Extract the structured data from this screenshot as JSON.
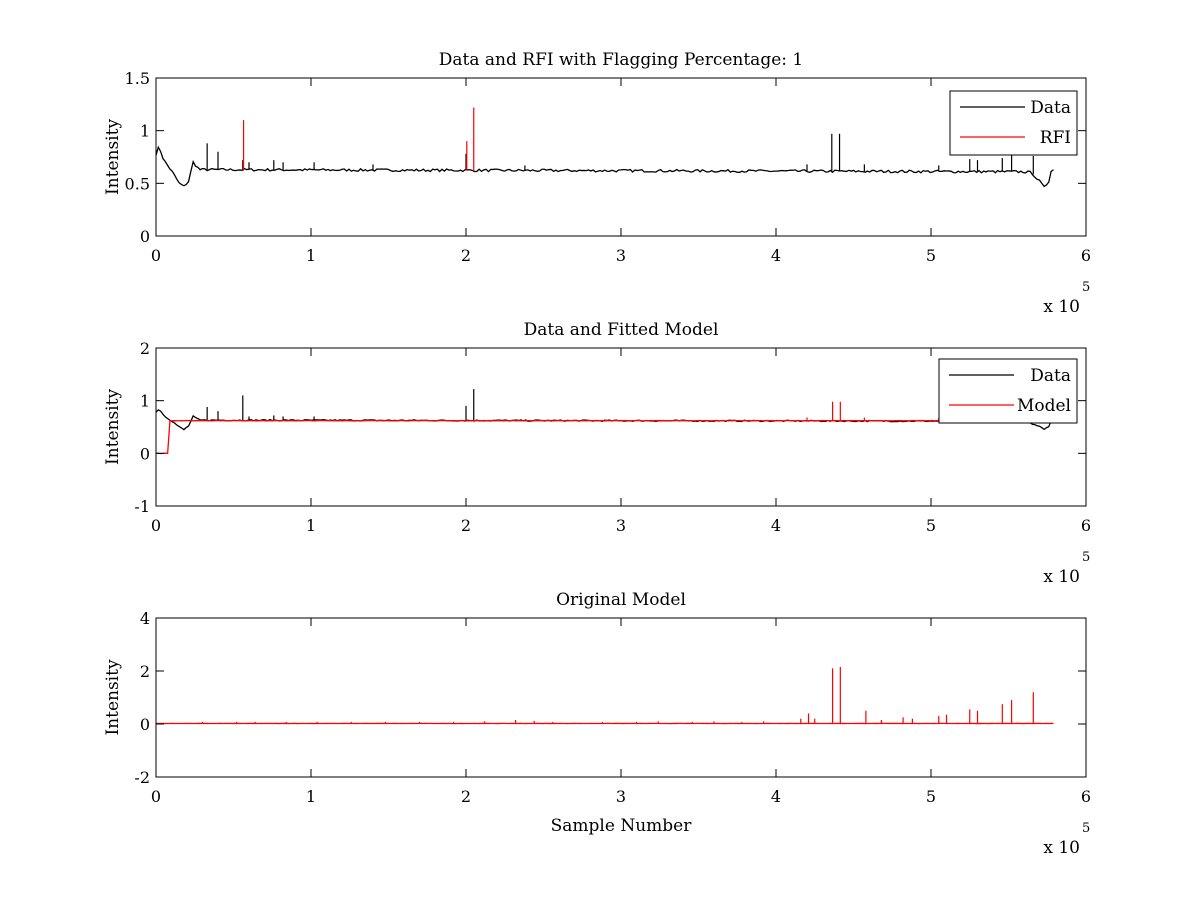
{
  "figure": {
    "background": "#ffffff",
    "colors": {
      "data": "#000000",
      "red": "#ff0000"
    }
  },
  "chart_data": [
    {
      "type": "line",
      "title": "Data and RFI with Flagging Percentage: 1",
      "xlabel": "",
      "ylabel": "Intensity",
      "xlim": [
        0,
        600000
      ],
      "ylim": [
        0,
        1.5
      ],
      "xticks": [
        0,
        1,
        2,
        3,
        4,
        5,
        6
      ],
      "xtick_scale": 100000,
      "yticks": [
        0,
        0.5,
        1,
        1.5
      ],
      "ytick_labels": [
        "0",
        "0.5",
        "1",
        "1.5"
      ],
      "exponent_label": {
        "base": "x 10",
        "power": "5"
      },
      "legend": {
        "position": "top-right",
        "entries": [
          "Data",
          "RFI"
        ]
      },
      "series": [
        {
          "name": "Data",
          "color": "#000000",
          "baseline": 0.62,
          "x_end": 580000,
          "shape": [
            [
              0,
              0.78
            ],
            [
              2000,
              0.85
            ],
            [
              5000,
              0.72
            ],
            [
              10000,
              0.62
            ],
            [
              15000,
              0.5
            ],
            [
              18000,
              0.47
            ],
            [
              21000,
              0.52
            ],
            [
              24000,
              0.7
            ],
            [
              28000,
              0.63
            ],
            [
              560000,
              0.61
            ],
            [
              565000,
              0.6
            ],
            [
              570000,
              0.52
            ],
            [
              573000,
              0.46
            ],
            [
              576000,
              0.52
            ],
            [
              578000,
              0.66
            ],
            [
              580000,
              0.6
            ]
          ],
          "spikes": [
            [
              33000,
              0.88
            ],
            [
              40000,
              0.8
            ],
            [
              56000,
              0.72
            ],
            [
              60000,
              0.7
            ],
            [
              76000,
              0.72
            ],
            [
              82000,
              0.7
            ],
            [
              102000,
              0.7
            ],
            [
              140000,
              0.68
            ],
            [
              200000,
              0.78
            ],
            [
              238000,
              0.67
            ],
            [
              420000,
              0.68
            ],
            [
              436000,
              0.97
            ],
            [
              441000,
              0.97
            ],
            [
              457000,
              0.68
            ],
            [
              505000,
              0.67
            ],
            [
              525000,
              0.73
            ],
            [
              530000,
              0.72
            ],
            [
              546000,
              0.74
            ],
            [
              552000,
              0.8
            ],
            [
              566000,
              0.76
            ]
          ]
        },
        {
          "name": "RFI",
          "color": "#ff0000",
          "spikes": [
            [
              56500,
              1.1
            ],
            [
              200500,
              0.9
            ],
            [
              205000,
              1.22
            ]
          ]
        }
      ]
    },
    {
      "type": "line",
      "title": "Data and Fitted Model",
      "xlabel": "",
      "ylabel": "Intensity",
      "xlim": [
        0,
        600000
      ],
      "ylim": [
        -1,
        2
      ],
      "xticks": [
        0,
        1,
        2,
        3,
        4,
        5,
        6
      ],
      "xtick_scale": 100000,
      "yticks": [
        -1,
        0,
        1,
        2
      ],
      "ytick_labels": [
        "-1",
        "0",
        "1",
        "2"
      ],
      "exponent_label": {
        "base": "x 10",
        "power": "5"
      },
      "legend": {
        "position": "top-right",
        "entries": [
          "Data",
          "Model"
        ]
      },
      "series": [
        {
          "name": "Data",
          "color": "#000000",
          "baseline": 0.62,
          "x_end": 580000,
          "shape": [
            [
              0,
              0.78
            ],
            [
              2000,
              0.85
            ],
            [
              5000,
              0.72
            ],
            [
              10000,
              0.62
            ],
            [
              15000,
              0.5
            ],
            [
              18000,
              0.45
            ],
            [
              21000,
              0.52
            ],
            [
              24000,
              0.7
            ],
            [
              28000,
              0.63
            ],
            [
              560000,
              0.61
            ],
            [
              570000,
              0.52
            ],
            [
              573000,
              0.46
            ],
            [
              576000,
              0.52
            ],
            [
              578000,
              0.66
            ],
            [
              580000,
              0.6
            ]
          ],
          "spikes": [
            [
              33000,
              0.88
            ],
            [
              40000,
              0.8
            ],
            [
              56000,
              1.1
            ],
            [
              60000,
              0.7
            ],
            [
              76000,
              0.72
            ],
            [
              82000,
              0.7
            ],
            [
              102000,
              0.7
            ],
            [
              200000,
              0.9
            ],
            [
              205000,
              1.22
            ]
          ]
        },
        {
          "name": "Model",
          "color": "#ff0000",
          "baseline": 0.62,
          "x_end": 580000,
          "shape": [
            [
              0,
              0.0
            ],
            [
              7500,
              0.0
            ],
            [
              8000,
              0.62
            ],
            [
              580000,
              0.62
            ]
          ],
          "spikes": [
            [
              420000,
              0.68
            ],
            [
              436500,
              0.98
            ],
            [
              441500,
              0.98
            ],
            [
              457000,
              0.68
            ],
            [
              505000,
              0.67
            ],
            [
              525000,
              0.7
            ],
            [
              546000,
              0.72
            ],
            [
              552000,
              0.74
            ]
          ]
        }
      ]
    },
    {
      "type": "line",
      "title": "Original Model",
      "xlabel": "Sample Number",
      "ylabel": "Intensity",
      "xlim": [
        0,
        600000
      ],
      "ylim": [
        -2,
        4
      ],
      "xticks": [
        0,
        1,
        2,
        3,
        4,
        5,
        6
      ],
      "xtick_scale": 100000,
      "yticks": [
        -2,
        0,
        2,
        4
      ],
      "ytick_labels": [
        "-2",
        "0",
        "2",
        "4"
      ],
      "exponent_label": {
        "base": "x 10",
        "power": "5"
      },
      "legend": null,
      "series": [
        {
          "name": "Original Model",
          "color": "#ff0000",
          "baseline": 0.02,
          "x_end": 580000,
          "shape": [
            [
              0,
              0.02
            ],
            [
              580000,
              0.02
            ]
          ],
          "spikes": [
            [
              30000,
              0.08
            ],
            [
              52000,
              0.08
            ],
            [
              64000,
              0.08
            ],
            [
              84000,
              0.08
            ],
            [
              104000,
              0.08
            ],
            [
              126000,
              0.08
            ],
            [
              148000,
              0.08
            ],
            [
              170000,
              0.08
            ],
            [
              192000,
              0.08
            ],
            [
              212000,
              0.1
            ],
            [
              232000,
              0.15
            ],
            [
              244000,
              0.12
            ],
            [
              256000,
              0.08
            ],
            [
              288000,
              0.08
            ],
            [
              310000,
              0.08
            ],
            [
              324000,
              0.1
            ],
            [
              346000,
              0.08
            ],
            [
              360000,
              0.1
            ],
            [
              378000,
              0.08
            ],
            [
              392000,
              0.1
            ],
            [
              416000,
              0.2
            ],
            [
              421000,
              0.4
            ],
            [
              425000,
              0.2
            ],
            [
              436500,
              2.1
            ],
            [
              441500,
              2.15
            ],
            [
              458000,
              0.5
            ],
            [
              468000,
              0.15
            ],
            [
              482000,
              0.25
            ],
            [
              488000,
              0.2
            ],
            [
              505000,
              0.3
            ],
            [
              510000,
              0.35
            ],
            [
              525000,
              0.55
            ],
            [
              530000,
              0.5
            ],
            [
              546000,
              0.75
            ],
            [
              552000,
              0.9
            ],
            [
              566000,
              1.2
            ]
          ]
        }
      ]
    }
  ]
}
